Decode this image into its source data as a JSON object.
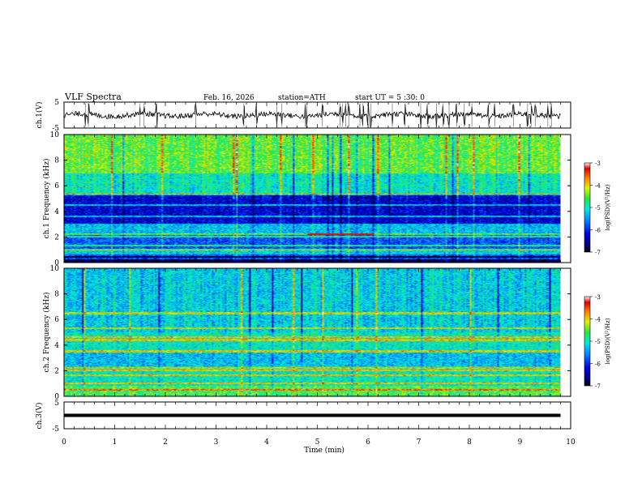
{
  "header": {
    "title": "VLF  Spectra",
    "date": "Feb. 16, 2026",
    "station": "station=ATH",
    "start_ut": "start  UT  =   5  :30: 0"
  },
  "chart_data": [
    {
      "type": "line",
      "name": "ch1-waveform",
      "ylabel": "ch.1(V)",
      "ylim": [
        -5,
        5
      ],
      "yticks": [
        "5",
        "-5"
      ],
      "xlim": [
        0,
        10
      ],
      "baseline": 0,
      "noise_amplitude": 1,
      "spike_times": [
        0.42,
        0.48,
        1.5,
        1.58,
        1.83,
        2.6,
        3.55,
        3.8,
        4.2,
        4.3,
        4.76,
        4.79,
        5.1,
        5.45,
        5.5,
        5.56,
        5.62,
        5.84,
        5.9,
        6.0,
        6.06,
        6.48,
        6.73,
        7.04,
        7.17,
        7.35,
        7.48,
        7.6,
        7.75,
        7.9,
        8.05,
        8.38,
        8.5,
        8.87,
        9.15,
        9.22,
        9.3,
        9.55,
        9.62
      ]
    },
    {
      "type": "heatmap",
      "name": "ch1-spectrogram",
      "ylabel": "ch.1 Frequency  (kHz)",
      "ylim_khz": [
        0,
        10
      ],
      "yticks": [
        "0",
        "2",
        "4",
        "6",
        "8",
        "10"
      ],
      "xlim_min": [
        0,
        10
      ],
      "data_end_min": 9.8,
      "colorbar": {
        "label": "log(PSD)(V²/Hz)",
        "range": [
          -7,
          -3
        ],
        "ticks": [
          "-3",
          "-4",
          "-5",
          "-6",
          "-7"
        ]
      },
      "bands": [
        {
          "f_khz": [
            0.0,
            0.6
          ],
          "level": -6.8
        },
        {
          "f_khz": [
            0.6,
            1.0
          ],
          "level": -5.2
        },
        {
          "f_khz": [
            1.0,
            2.2
          ],
          "level": -5.8
        },
        {
          "f_khz": [
            2.2,
            3.0
          ],
          "level": -5.3
        },
        {
          "f_khz": [
            3.0,
            5.3
          ],
          "level": -6.3
        },
        {
          "f_khz": [
            5.3,
            7.0
          ],
          "level": -5.0
        },
        {
          "f_khz": [
            7.0,
            10.0
          ],
          "level": -4.5
        }
      ],
      "lines_khz": [
        0.3,
        0.55,
        1.0,
        1.3,
        2.0,
        2.2,
        3.6,
        4.5,
        5.3
      ],
      "red_line": {
        "f_khz": 2.2,
        "t_min": [
          4.8,
          6.1
        ]
      }
    },
    {
      "type": "heatmap",
      "name": "ch2-spectrogram",
      "ylabel": "ch.2 Frequency  (kHz)",
      "ylim_khz": [
        0,
        10
      ],
      "yticks": [
        "0",
        "2",
        "4",
        "6",
        "8",
        "10"
      ],
      "xlim_min": [
        0,
        10
      ],
      "data_end_min": 9.8,
      "colorbar": {
        "label": "log(PSD)(V²/Hz)",
        "range": [
          -7,
          -3
        ],
        "ticks": [
          "-3",
          "-4",
          "-5",
          "-6",
          "-7"
        ]
      },
      "bands": [
        {
          "f_khz": [
            0.0,
            0.8
          ],
          "level": -4.6
        },
        {
          "f_khz": [
            0.8,
            2.3
          ],
          "level": -5.0
        },
        {
          "f_khz": [
            2.3,
            3.5
          ],
          "level": -5.3
        },
        {
          "f_khz": [
            3.5,
            5.0
          ],
          "level": -5.0
        },
        {
          "f_khz": [
            5.0,
            10.0
          ],
          "level": -5.2
        }
      ],
      "lines_khz": [
        0.5,
        1.0,
        1.6,
        2.0,
        2.2,
        3.5,
        4.4,
        4.6,
        5.3,
        6.5
      ]
    },
    {
      "type": "line",
      "name": "ch3-waveform",
      "ylabel": "ch.3(V)",
      "ylim": [
        -5,
        5
      ],
      "yticks": [
        "5",
        "-5"
      ],
      "xlim": [
        0,
        10
      ],
      "baseline": 0,
      "noise_amplitude": 0,
      "xlabel": "Time  (min)",
      "xticks": [
        "0",
        "1",
        "2",
        "3",
        "4",
        "5",
        "6",
        "7",
        "8",
        "9",
        "10"
      ]
    }
  ]
}
